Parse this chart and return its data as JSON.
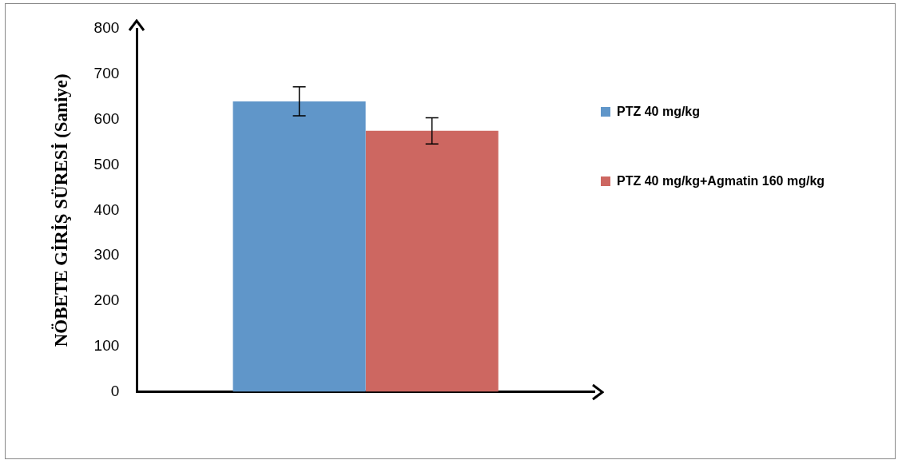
{
  "chart_data": {
    "type": "bar",
    "ylabel": "NÖBETE GİRİŞ SÜRESİ (Saniye)",
    "categories": [
      null
    ],
    "series": [
      {
        "name": "PTZ 40 mg/kg",
        "color": "#6096c9",
        "values": [
          640
        ],
        "errors": [
          32
        ]
      },
      {
        "name": "PTZ 40 mg/kg+Agmatin 160 mg/kg",
        "color": "#cd6761",
        "values": [
          575
        ],
        "errors": [
          29
        ]
      }
    ],
    "ylim": [
      0,
      800
    ],
    "yticks": [
      0,
      100,
      200,
      300,
      400,
      500,
      600,
      700,
      800
    ],
    "grid": false,
    "legend": "right"
  }
}
